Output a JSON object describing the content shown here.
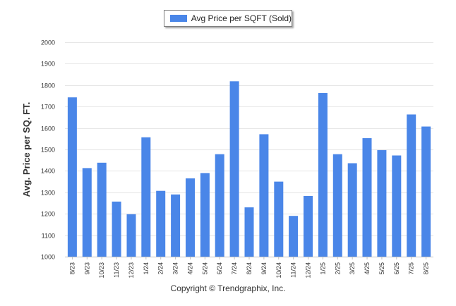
{
  "chart_data": {
    "type": "bar",
    "legend": {
      "label": "Avg Price per SQFT (Sold)",
      "position": "top-center"
    },
    "ylabel": "Avg. Price per SQ. FT.",
    "xlabel": "",
    "ylim": [
      1000,
      2000
    ],
    "yticks": [
      1000,
      1100,
      1200,
      1300,
      1400,
      1500,
      1600,
      1700,
      1800,
      1900,
      2000
    ],
    "grid": true,
    "bar_color": "#4a86e8",
    "categories": [
      "8/23",
      "9/23",
      "10/23",
      "11/23",
      "12/23",
      "1/24",
      "2/24",
      "3/24",
      "4/24",
      "5/24",
      "6/24",
      "7/24",
      "8/24",
      "9/24",
      "10/24",
      "11/24",
      "12/24",
      "1/25",
      "2/25",
      "3/25",
      "4/25",
      "5/25",
      "6/25",
      "7/25",
      "8/25"
    ],
    "series": [
      {
        "name": "Avg Price per SQFT (Sold)",
        "values": [
          1743,
          1413,
          1438,
          1257,
          1198,
          1557,
          1307,
          1290,
          1365,
          1390,
          1478,
          1818,
          1230,
          1571,
          1350,
          1190,
          1283,
          1763,
          1478,
          1436,
          1553,
          1497,
          1472,
          1663,
          1607
        ]
      }
    ]
  },
  "footer": {
    "copyright": "Copyright © Trendgraphix, Inc."
  }
}
